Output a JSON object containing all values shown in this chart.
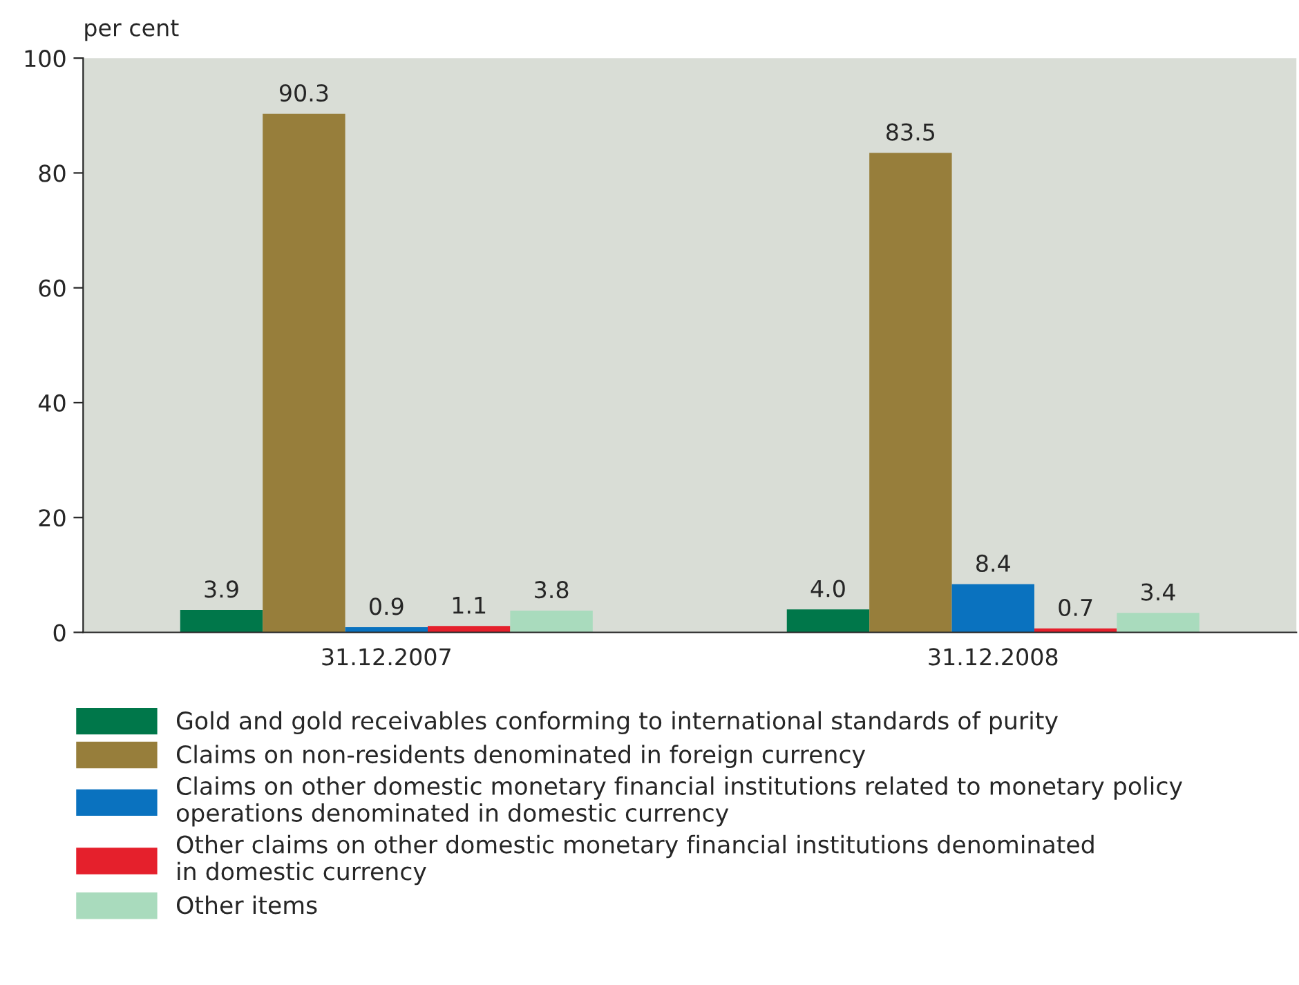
{
  "chart_data": {
    "type": "bar",
    "ylabel": "per cent",
    "categories": [
      "31.12.2007",
      "31.12.2008"
    ],
    "series": [
      {
        "name": "Gold and gold receivables conforming to international standards of purity",
        "color": "#00774a",
        "values": [
          3.9,
          4.0
        ],
        "value_labels": [
          "3.9",
          "4.0"
        ]
      },
      {
        "name": "Claims on non-residents denominated in foreign currency",
        "color": "#977e3b",
        "values": [
          90.3,
          83.5
        ],
        "value_labels": [
          "90.3",
          "83.5"
        ]
      },
      {
        "name": "Claims on other domestic monetary financial institutions related to monetary policy\noperations denominated in domestic currency",
        "color": "#0a72bf",
        "values": [
          0.9,
          8.4
        ],
        "value_labels": [
          "0.9",
          "8.4"
        ]
      },
      {
        "name": "Other claims on other domestic monetary financial institutions denominated\nin domestic currency",
        "color": "#e5202c",
        "values": [
          1.1,
          0.7
        ],
        "value_labels": [
          "1.1",
          "0.7"
        ]
      },
      {
        "name": "Other items",
        "color": "#a9dbbd",
        "values": [
          3.8,
          3.4
        ],
        "value_labels": [
          "3.8",
          "3.4"
        ]
      }
    ],
    "ylim": [
      0,
      100
    ],
    "yticks": [
      0,
      20,
      40,
      60,
      80,
      100
    ],
    "grid": false,
    "legend": "bottom"
  }
}
